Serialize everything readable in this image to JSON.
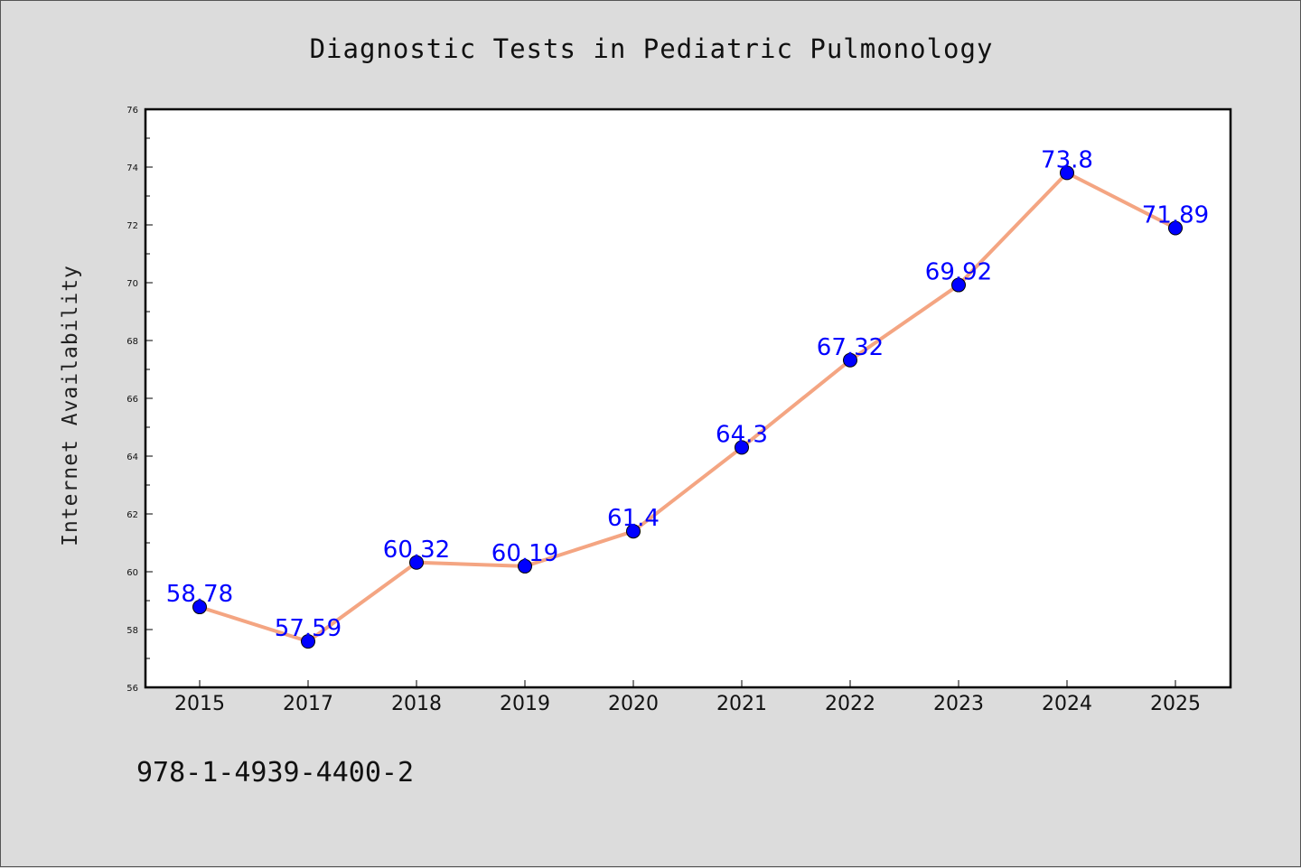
{
  "chart_data": {
    "type": "line",
    "title": "Diagnostic Tests in Pediatric Pulmonology",
    "xlabel": "",
    "ylabel": "Internet Availability",
    "categories": [
      "2015",
      "2017",
      "2018",
      "2019",
      "2020",
      "2021",
      "2022",
      "2023",
      "2024",
      "2025"
    ],
    "series": [
      {
        "values": [
          58.78,
          57.59,
          60.32,
          60.19,
          61.4,
          64.3,
          67.32,
          69.92,
          73.8,
          71.89
        ],
        "data_labels": [
          "58.78",
          "57.59",
          "60.32",
          "60.19",
          "61.4",
          "64.3",
          "67.32",
          "69.92",
          "73.8",
          "71.89"
        ]
      }
    ],
    "ylim": [
      56,
      76
    ],
    "yticks": [
      "56",
      "58",
      "60",
      "62",
      "64",
      "66",
      "68",
      "70",
      "72",
      "74",
      "76"
    ],
    "grid": false,
    "legend": "none",
    "colors": {
      "background": "#dcdcdc",
      "plot_background": "#ffffff",
      "line": "#f4a582",
      "marker": "#0000ff",
      "data_label": "#0000ff"
    }
  },
  "footer_text": "978-1-4939-4400-2"
}
